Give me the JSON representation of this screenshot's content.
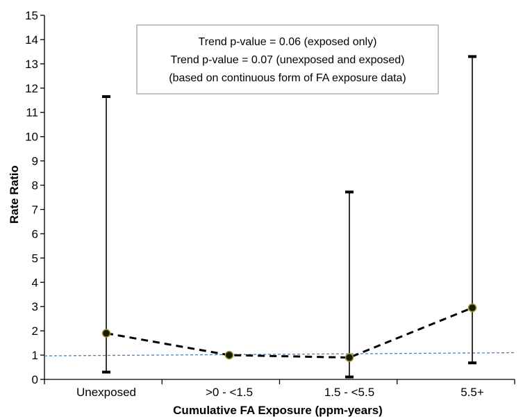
{
  "chart_data": {
    "type": "scatter",
    "title": "",
    "xlabel": "Cumulative FA Exposure (ppm-years)",
    "ylabel": "Rate Ratio",
    "categories": [
      "Unexposed",
      ">0 - <1.5",
      "1.5 - <5.5",
      "5.5+"
    ],
    "ylim": [
      0,
      15
    ],
    "yticks": [
      0,
      1,
      2,
      3,
      4,
      5,
      6,
      7,
      8,
      9,
      10,
      11,
      12,
      13,
      14,
      15
    ],
    "grid": false,
    "series": [
      {
        "values": [
          1.9,
          1.0,
          0.9,
          2.95
        ],
        "lower": [
          0.3,
          null,
          0.1,
          0.68
        ],
        "upper": [
          11.65,
          null,
          7.72,
          13.3
        ],
        "color": "#000000",
        "marker_fill": "#1a1a00",
        "line_style": "dashed"
      }
    ],
    "reference_line": {
      "x": [
        0,
        4
      ],
      "y": [
        0.97,
        1.1
      ],
      "color": "#4a7fb5",
      "style": "dashed"
    },
    "annotation": {
      "lines": [
        "Trend p-value = 0.06  (exposed only)",
        "Trend p-value = 0.07  (unexposed and exposed)",
        "(based on continuous form of FA exposure data)"
      ],
      "placement": "top-center"
    }
  }
}
